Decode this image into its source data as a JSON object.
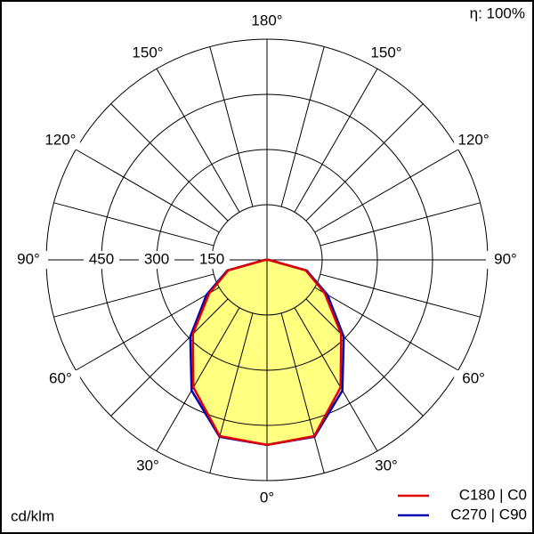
{
  "chart_data": {
    "type": "polar",
    "efficiency": "η: 100%",
    "unit": "cd/klm",
    "angles": [
      0,
      15,
      30,
      45,
      60,
      75,
      90,
      105,
      120,
      135,
      150,
      165,
      180
    ],
    "angle_ticks": [
      {
        "value": 0,
        "label": "0°"
      },
      {
        "value": 30,
        "label": "30°"
      },
      {
        "value": 60,
        "label": "60°"
      },
      {
        "value": 90,
        "label": "90°"
      },
      {
        "value": 120,
        "label": "120°"
      },
      {
        "value": 150,
        "label": "150°"
      },
      {
        "value": 180,
        "label": "180°"
      }
    ],
    "rlim": [
      0,
      600
    ],
    "rticks": [
      150,
      300,
      450
    ],
    "fill": "#ffff80",
    "series": [
      {
        "name": "C180 | C0",
        "color": "#e00000",
        "values": [
          503,
          496,
          400,
          285,
          181,
          109,
          5,
          0,
          0,
          0,
          0,
          0,
          0
        ]
      },
      {
        "name": "C270 | C90",
        "color": "#0000b0",
        "values": [
          503,
          498,
          410,
          295,
          190,
          112,
          5,
          0,
          0,
          0,
          0,
          0,
          0
        ]
      }
    ]
  }
}
